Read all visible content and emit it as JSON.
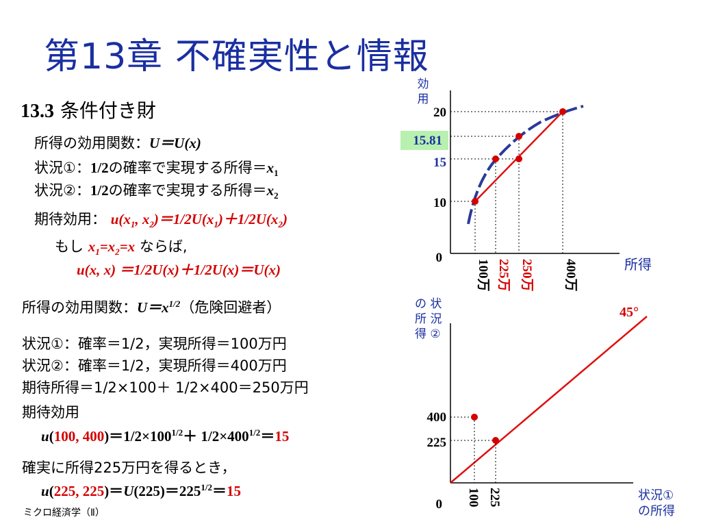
{
  "title": "第13章 不確実性と情報",
  "section": {
    "num": "13.3",
    "name": "条件付き財"
  },
  "left": {
    "l1_pre": "所得の効用関数：",
    "l1_expr": "U＝U(x)",
    "l2_pre": "状況①：",
    "l2_half": "1/2",
    "l2_text": "の確率で実現する所得＝",
    "l2_var": "x",
    "l2_sub": "1",
    "l3_pre": "状況②：",
    "l3_half": "1/2",
    "l3_text": "の確率で実現する所得＝",
    "l3_var": "x",
    "l3_sub": "2",
    "l4_pre": "期待効用：",
    "l4_expr": "u(x1, x2)＝1/2U(x1)＋1/2U(x2)",
    "l5_pre": "もし",
    "l5_expr": "x1=x2=x",
    "l5_post": "ならば,",
    "l6_expr": "u(x, x) ＝1/2U(x)＋1/2U(x)＝U(x)",
    "m1_pre": "所得の効用関数：",
    "m1_expr": "U＝x1/2",
    "m1_post": "（危険回避者）",
    "m2": "状況①：確率＝1/2，実現所得＝100万円",
    "m3": "状況②：確率＝1/2，実現所得＝400万円",
    "m4": "期待所得＝1/2×100＋ 1/2×400＝250万円",
    "m5": "期待効用",
    "m6_expr": "u(100, 400)＝1/2×1001/2＋ 1/2×4001/2＝15",
    "m7": "確実に所得225万円を得るとき，",
    "m8_expr": "u(225, 225)＝U(225)＝2251/2＝15"
  },
  "footer": "ミクロ経済学（Ⅱ）",
  "top_chart": {
    "y_axis_label": "効用",
    "x_axis_label": "所得",
    "y_ticks": [
      "20",
      "15.81",
      "15",
      "10",
      "0"
    ],
    "x_ticks": [
      "100万",
      "225万",
      "250万",
      "400万"
    ],
    "colors": {
      "curve": "#2a3a9a",
      "line": "#e01010",
      "highlight_box": "#b8f0b0"
    }
  },
  "bottom_chart": {
    "y_axis_label": "状況②の所得",
    "x_axis_label": "状況①の所得",
    "diag_label": "45°",
    "y_ticks": [
      "400",
      "225",
      "0"
    ],
    "x_ticks": [
      "100",
      "225"
    ]
  },
  "chart_data": [
    {
      "type": "line",
      "title": "",
      "xlabel": "所得",
      "ylabel": "効用",
      "series": [
        {
          "name": "",
          "x": [
            100,
            400
          ],
          "y": [
            10,
            20
          ]
        }
      ],
      "points": [
        {
          "x": 100,
          "y": 10
        },
        {
          "x": 225,
          "y": 15
        },
        {
          "x": 250,
          "y": 15
        },
        {
          "x": 250,
          "y": 15.81
        },
        {
          "x": 400,
          "y": 20
        }
      ]
    },
    {
      "type": "scatter",
      "title": "",
      "xlabel": "状況①の所得",
      "ylabel": "状況②の所得",
      "points": [
        {
          "x": 100,
          "y": 400
        },
        {
          "x": 225,
          "y": 225
        }
      ]
    }
  ]
}
